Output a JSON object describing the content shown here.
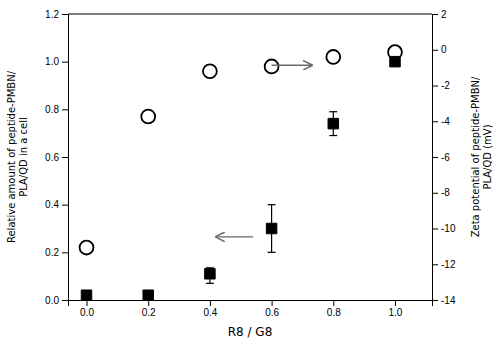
{
  "chart_data": {
    "type": "scatter",
    "xlabel": "R8 / G8",
    "ylabel": "Relative amount of peptide-PMBN/\nPLA/QD in a cell",
    "y2label": "Zeta potential of peptide-PMBN/\nPLA/QD (mV)",
    "x": [
      0.0,
      0.2,
      0.4,
      0.6,
      0.8,
      1.0
    ],
    "series": [
      {
        "type": "scatter",
        "marker": "open-circle",
        "color": "black",
        "values": [
          0.22,
          0.77,
          0.96,
          0.98,
          1.02,
          1.04
        ]
      },
      {
        "type": "scatter",
        "marker": "square",
        "color": "black",
        "values": [
          0.02,
          0.02,
          0.11,
          0.3,
          0.74,
          1.0
        ],
        "errors_minus": [
          0.0,
          0.005,
          0.04,
          0.1,
          0.05,
          0.0
        ],
        "errors_plus": [
          0.0,
          0.005,
          0.025,
          0.1,
          0.05,
          0.0
        ]
      }
    ],
    "xlim": [
      -0.06,
      1.12
    ],
    "xticks": [
      {
        "value": 0.0,
        "label": "0.0"
      },
      0.2,
      0.4,
      0.6,
      0.8,
      {
        "value": 1.0,
        "label": "1.0"
      }
    ],
    "ylim": [
      0.0,
      1.2
    ],
    "yticks": [
      {
        "value": 0.0,
        "label": "0.0"
      },
      0.2,
      0.4,
      0.6,
      0.8,
      {
        "value": 1.0,
        "label": "1.0"
      },
      1.2
    ],
    "y2lim": [
      -14,
      2
    ],
    "y2ticks": [
      2,
      0,
      -2,
      -4,
      -6,
      -8,
      -10,
      -12,
      -14
    ],
    "annotations": [
      {
        "type": "arrow",
        "x_start": 0.54,
        "x_end": 0.42,
        "y": 0.265
      },
      {
        "type": "arrow",
        "x_start": 0.6,
        "x_end": 0.73,
        "y": 0.985
      }
    ],
    "grid": false
  }
}
